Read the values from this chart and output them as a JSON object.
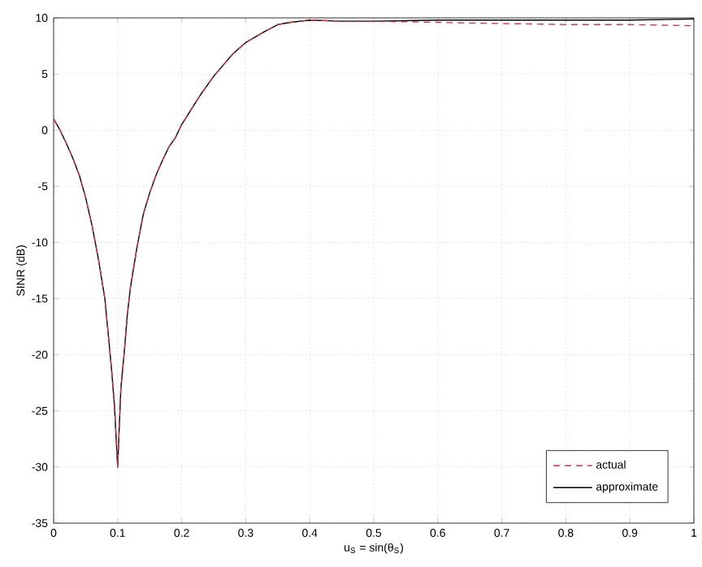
{
  "chart_data": {
    "type": "line",
    "xlabel": "u$_{S}$ = sin(θ$_{S}$)",
    "ylabel": "SINR (dB)",
    "x": [
      0,
      0.01,
      0.02,
      0.03,
      0.04,
      0.05,
      0.06,
      0.07,
      0.08,
      0.085,
      0.09,
      0.095,
      0.1,
      0.105,
      0.11,
      0.115,
      0.12,
      0.13,
      0.14,
      0.15,
      0.16,
      0.17,
      0.18,
      0.19,
      0.2,
      0.23,
      0.25,
      0.28,
      0.3,
      0.33,
      0.35,
      0.37,
      0.4,
      0.45,
      0.5,
      0.6,
      0.7,
      0.8,
      0.9,
      1
    ],
    "series": [
      {
        "name": "actual",
        "color": "#dd3344",
        "line_style": "dashed",
        "values": [
          1,
          0,
          -1.2,
          -2.5,
          -4,
          -6,
          -8.5,
          -11.5,
          -15,
          -18,
          -21,
          -24.5,
          -30,
          -23,
          -20,
          -16.5,
          -14,
          -10.5,
          -7.5,
          -5.6,
          -4,
          -2.7,
          -1.5,
          -0.7,
          0.5,
          3.2,
          4.8,
          6.8,
          7.8,
          8.8,
          9.4,
          9.6,
          9.8,
          9.7,
          9.7,
          9.6,
          9.5,
          9.4,
          9.4,
          9.3
        ]
      },
      {
        "name": "approximate",
        "color": "#000000",
        "line_style": "solid",
        "values": [
          1,
          0,
          -1.2,
          -2.5,
          -4,
          -6,
          -8.5,
          -11.5,
          -15,
          -18,
          -21,
          -24.5,
          -30,
          -23,
          -20,
          -16.5,
          -14,
          -10.5,
          -7.5,
          -5.6,
          -4,
          -2.7,
          -1.5,
          -0.7,
          0.5,
          3.2,
          4.8,
          6.8,
          7.8,
          8.8,
          9.4,
          9.6,
          9.8,
          9.7,
          9.7,
          9.8,
          9.8,
          9.8,
          9.8,
          9.9
        ]
      }
    ],
    "xlim": [
      0,
      1
    ],
    "ylim": [
      -35,
      10
    ],
    "xticks": [
      0,
      0.1,
      0.2,
      0.3,
      0.4,
      0.5,
      0.6,
      0.7,
      0.8,
      0.9,
      1
    ],
    "yticks": [
      -35,
      -30,
      -25,
      -20,
      -15,
      -10,
      -5,
      0,
      5,
      10
    ],
    "grid": true,
    "legend": "bottom right",
    "marker": "none"
  }
}
